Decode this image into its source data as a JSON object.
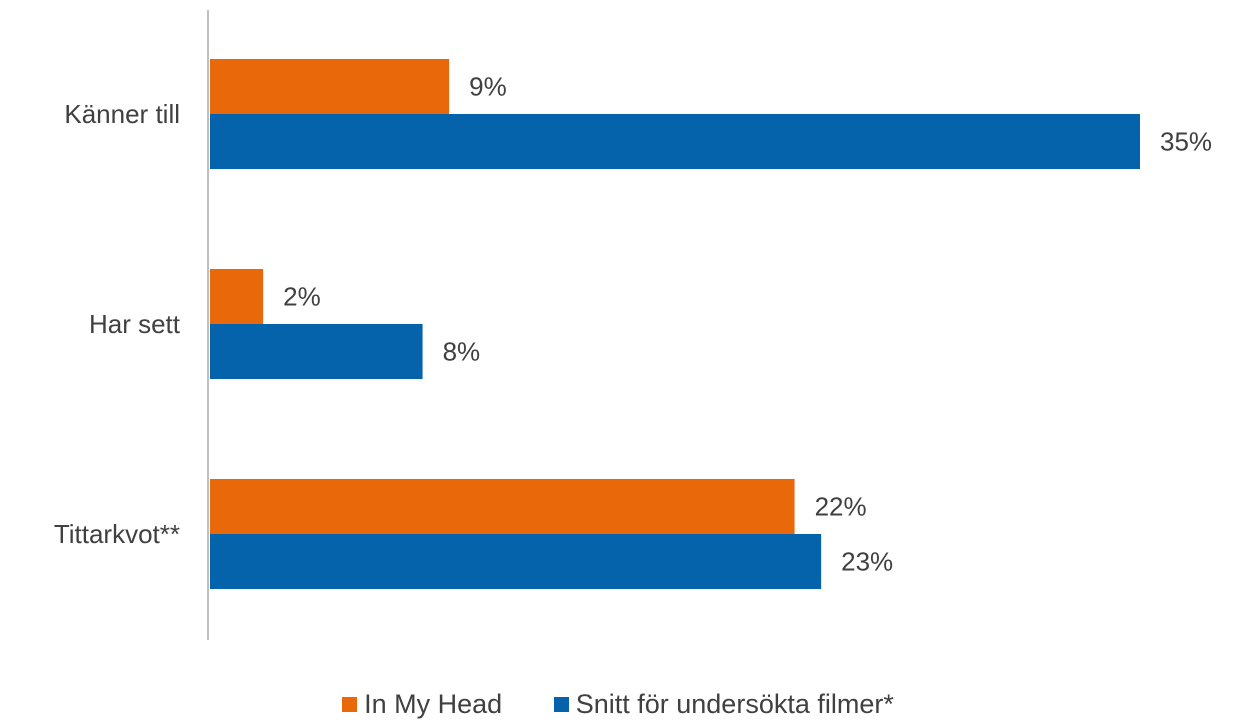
{
  "chart_data": {
    "type": "bar",
    "orientation": "horizontal",
    "categories": [
      "Känner till",
      "Har sett",
      "Tittarkvot**"
    ],
    "series": [
      {
        "name": "In My Head",
        "values": [
          9,
          2,
          22
        ],
        "color": "#E8680A"
      },
      {
        "name": "Snitt för undersökta filmer*",
        "values": [
          35,
          8,
          23
        ],
        "color": "#0563AC"
      }
    ],
    "value_labels": [
      [
        "9%",
        "2%",
        "22%"
      ],
      [
        "35%",
        "8%",
        "23%"
      ]
    ],
    "xlim": [
      0,
      35
    ],
    "grid": false,
    "legend_position": "bottom",
    "axis_color": "#BFBFBF",
    "text_color": "#404040"
  }
}
